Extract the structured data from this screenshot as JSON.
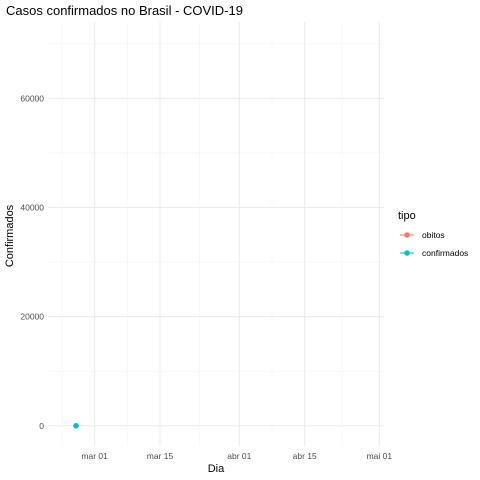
{
  "chart_data": {
    "type": "line",
    "title": "Casos confirmados no Brasil - COVID-19",
    "xlabel": "Dia",
    "ylabel": "Confirmados",
    "x_ticks": [
      "mar 01",
      "mar 15",
      "abr 01",
      "abr 15",
      "mai 01"
    ],
    "x_tick_dates": [
      "2020-03-01",
      "2020-03-15",
      "2020-04-01",
      "2020-04-15",
      "2020-05-01"
    ],
    "xlim": [
      "2020-02-20",
      "2020-05-02"
    ],
    "y_ticks": [
      "0",
      "20000",
      "40000",
      "60000"
    ],
    "ylim": [
      -3700,
      74000
    ],
    "grid": true,
    "legend": {
      "title": "tipo",
      "position": "right"
    },
    "series": [
      {
        "name": "obitos",
        "color": "#F8766D",
        "points": []
      },
      {
        "name": "confirmados",
        "color": "#00BFC4",
        "points": [
          {
            "x": "2020-02-26",
            "y": 1
          }
        ]
      }
    ]
  }
}
